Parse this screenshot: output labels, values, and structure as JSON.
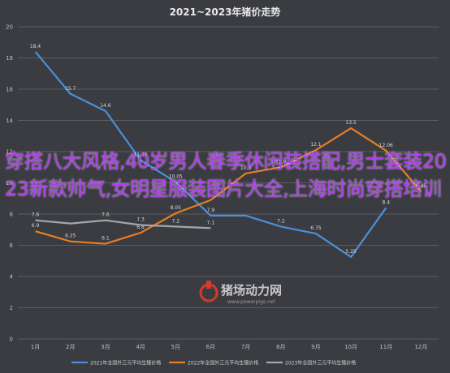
{
  "chart_data": {
    "type": "line",
    "title": "2021~2023年猪价走势",
    "categories": [
      "1月",
      "2月",
      "3月",
      "4月",
      "5月",
      "6月",
      "7月",
      "8月",
      "9月",
      "10月",
      "11月",
      "12月"
    ],
    "y_ticks": [
      "0",
      "2",
      "4",
      "6",
      "8",
      "10",
      "12",
      "14",
      "16",
      "18",
      "20"
    ],
    "ylim": [
      0,
      20
    ],
    "grid": true,
    "legend_position": "bottom",
    "series": [
      {
        "name": "2021年全国外三元平均生猪价格",
        "color": "#4a90d9",
        "values": [
          18.4,
          15.7,
          14.6,
          11.45,
          10.05,
          7.9,
          7.9,
          7.2,
          6.75,
          5.25,
          8.4,
          null
        ],
        "labels": [
          "18.4",
          "15.7",
          "14.6",
          "11.45",
          "10.05",
          "7.9",
          "",
          "7.2",
          "6.75",
          "5.25",
          "8.4",
          ""
        ]
      },
      {
        "name": "2022年全国外三元平均生猪价格",
        "color": "#e67e22",
        "values": [
          6.9,
          6.25,
          6.1,
          6.8,
          8.05,
          8.9,
          10.6,
          11.0,
          12.1,
          13.5,
          12.06,
          9.45
        ],
        "labels": [
          "6.9",
          "6.25",
          "6.1",
          "6.8",
          "8.05",
          "",
          "10.6",
          "11.0",
          "12.1",
          "13.5",
          "12.06",
          "9.45"
        ]
      },
      {
        "name": "2023年全国外三元平均生猪价格",
        "color": "#a6a6a6",
        "values": [
          7.6,
          7.4,
          7.6,
          7.3,
          7.2,
          7.1,
          null,
          null,
          null,
          null,
          null,
          null
        ],
        "labels": [
          "7.6",
          "",
          "7.6",
          "7.3",
          "7.2",
          "7.1",
          "",
          "",
          "",
          "",
          "",
          ""
        ]
      }
    ]
  },
  "watermark": {
    "brand": "猪场动力网",
    "url": "www.powerpigs.net"
  },
  "overlay_text": "穿搭八大风格,40岁男人春季休闲装搭配,男士套装2023新款帅气,女明星服装图片大全,上海时尚穿搭培训",
  "colors": {
    "background": "#3a3c41",
    "grid": "#5a5c62",
    "overlay": "#b13bf0"
  }
}
